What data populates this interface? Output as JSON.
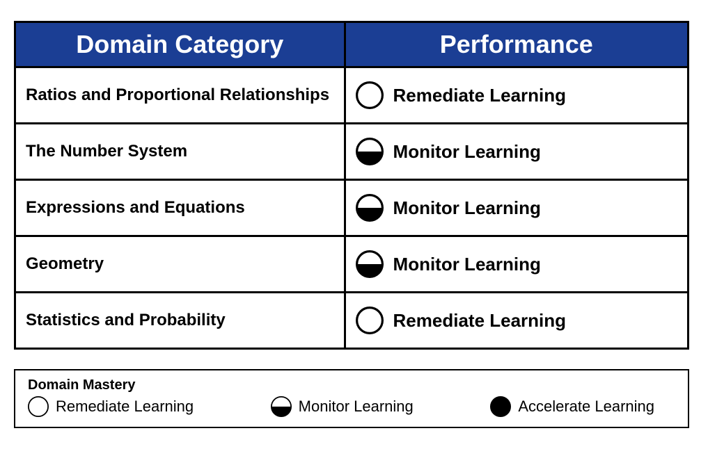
{
  "colors": {
    "header_bg": "#1b3e94",
    "header_text": "#ffffff",
    "border": "#000000",
    "text": "#000000",
    "icon_stroke": "#000000",
    "icon_fill": "#000000",
    "cell_bg": "#ffffff"
  },
  "table": {
    "headers": {
      "domain": "Domain Category",
      "performance": "Performance"
    },
    "rows": [
      {
        "domain": "Ratios and Proportional Relationships",
        "perf_label": "Remediate Learning",
        "perf_icon": "empty"
      },
      {
        "domain": "The Number System",
        "perf_label": "Monitor Learning",
        "perf_icon": "half"
      },
      {
        "domain": "Expressions and Equations",
        "perf_label": "Monitor Learning",
        "perf_icon": "half"
      },
      {
        "domain": "Geometry",
        "perf_label": "Monitor Learning",
        "perf_icon": "half"
      },
      {
        "domain": "Statistics and Probability",
        "perf_label": "Remediate Learning",
        "perf_icon": "empty"
      }
    ]
  },
  "legend": {
    "title": "Domain Mastery",
    "items": [
      {
        "label": "Remediate Learning",
        "icon": "empty"
      },
      {
        "label": "Monitor Learning",
        "icon": "half"
      },
      {
        "label": "Accelerate Learning",
        "icon": "full"
      }
    ]
  },
  "icon_style": {
    "stroke_width_large": 4,
    "stroke_width_small": 3
  }
}
